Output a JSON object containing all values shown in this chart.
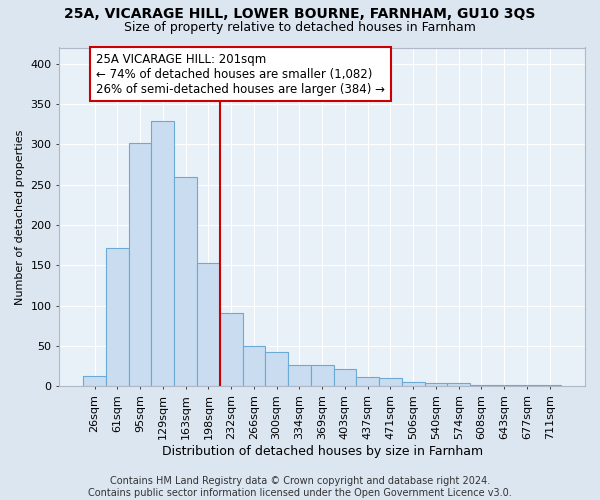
{
  "title1": "25A, VICARAGE HILL, LOWER BOURNE, FARNHAM, GU10 3QS",
  "title2": "Size of property relative to detached houses in Farnham",
  "xlabel": "Distribution of detached houses by size in Farnham",
  "ylabel": "Number of detached properties",
  "footnote": "Contains HM Land Registry data © Crown copyright and database right 2024.\nContains public sector information licensed under the Open Government Licence v3.0.",
  "categories": [
    "26sqm",
    "61sqm",
    "95sqm",
    "129sqm",
    "163sqm",
    "198sqm",
    "232sqm",
    "266sqm",
    "300sqm",
    "334sqm",
    "369sqm",
    "403sqm",
    "437sqm",
    "471sqm",
    "506sqm",
    "540sqm",
    "574sqm",
    "608sqm",
    "643sqm",
    "677sqm",
    "711sqm"
  ],
  "values": [
    13,
    172,
    301,
    329,
    259,
    153,
    91,
    50,
    42,
    27,
    27,
    21,
    12,
    10,
    5,
    4,
    4,
    1,
    2,
    1,
    2
  ],
  "bar_color": "#c9dcf0",
  "bar_edge_color": "#6aaad4",
  "highlight_index": 5,
  "highlight_line_color": "#cc0000",
  "annotation_text": "25A VICARAGE HILL: 201sqm\n← 74% of detached houses are smaller (1,082)\n26% of semi-detached houses are larger (384) →",
  "annotation_box_facecolor": "#ffffff",
  "annotation_box_edgecolor": "#cc0000",
  "ylim": [
    0,
    420
  ],
  "yticks": [
    0,
    50,
    100,
    150,
    200,
    250,
    300,
    350,
    400
  ],
  "fig_bg_color": "#dce6f1",
  "plot_bg_color": "#e8f0f8",
  "title1_fontsize": 10,
  "title2_fontsize": 9,
  "xlabel_fontsize": 9,
  "ylabel_fontsize": 8,
  "tick_fontsize": 8,
  "annotation_fontsize": 8.5,
  "footnote_fontsize": 7
}
